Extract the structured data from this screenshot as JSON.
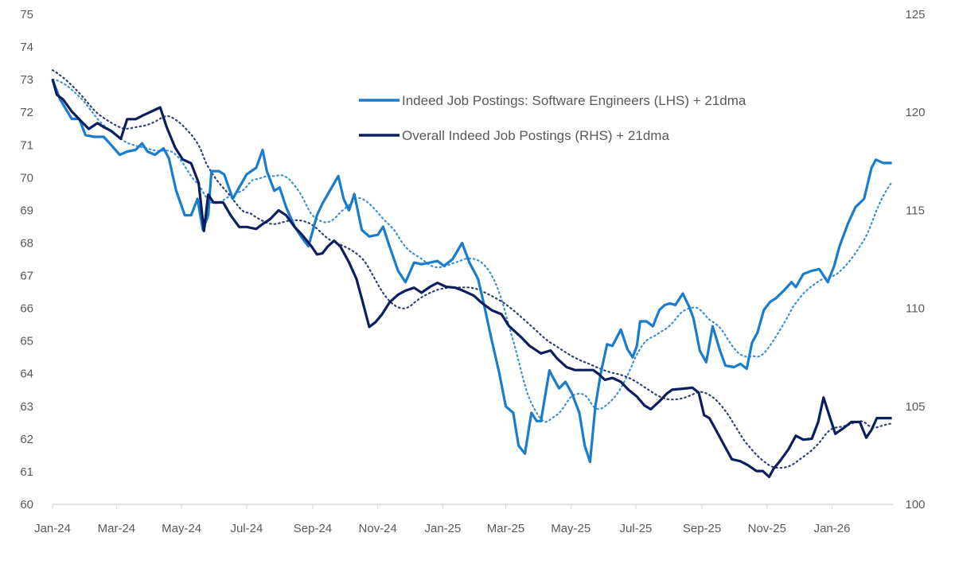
{
  "chart_data": {
    "type": "line",
    "title": "",
    "xlabel": "",
    "ylabel_left": "",
    "ylabel_right": "",
    "y_left": {
      "min": 60,
      "max": 75,
      "step": 1,
      "ticks": [
        "60",
        "61",
        "62",
        "63",
        "64",
        "65",
        "66",
        "67",
        "68",
        "69",
        "70",
        "71",
        "72",
        "73",
        "74",
        "75"
      ]
    },
    "y_right": {
      "min": 100,
      "max": 125,
      "step": 5,
      "ticks": [
        "100",
        "105",
        "110",
        "115",
        "120",
        "125"
      ]
    },
    "x_ticks": [
      {
        "date": "2024-01-01",
        "label": "Jan-24"
      },
      {
        "date": "2024-03-01",
        "label": "Mar-24"
      },
      {
        "date": "2024-05-01",
        "label": "May-24"
      },
      {
        "date": "2024-07-01",
        "label": "Jul-24"
      },
      {
        "date": "2024-09-01",
        "label": "Sep-24"
      },
      {
        "date": "2024-11-01",
        "label": "Nov-24"
      },
      {
        "date": "2025-01-01",
        "label": "Jan-25"
      },
      {
        "date": "2025-03-01",
        "label": "Mar-25"
      },
      {
        "date": "2025-05-01",
        "label": "May-25"
      },
      {
        "date": "2025-07-01",
        "label": "Jul-25"
      },
      {
        "date": "2025-09-01",
        "label": "Sep-25"
      },
      {
        "date": "2025-11-01",
        "label": "Nov-25"
      },
      {
        "date": "2026-01-01",
        "label": "Jan-26"
      }
    ],
    "grid": false,
    "legend_position": "top-right",
    "series": [
      {
        "name": "Indeed Job Postings: Software Engineers (LHS) + 21dma",
        "axis": "left",
        "color": "#1a7ccc",
        "moving_average": "21dma, dotted",
        "x": [
          "2024-01-01",
          "2024-01-08",
          "2024-01-19",
          "2024-01-26",
          "2024-02-01",
          "2024-02-09",
          "2024-02-18",
          "2024-02-25",
          "2024-03-04",
          "2024-03-11",
          "2024-03-19",
          "2024-03-25",
          "2024-03-30",
          "2024-04-06",
          "2024-04-14",
          "2024-04-19",
          "2024-04-26",
          "2024-05-04",
          "2024-05-10",
          "2024-05-16",
          "2024-05-21",
          "2024-05-26",
          "2024-05-29",
          "2024-06-05",
          "2024-06-10",
          "2024-06-18",
          "2024-06-24",
          "2024-07-01",
          "2024-07-10",
          "2024-07-16",
          "2024-07-20",
          "2024-07-27",
          "2024-08-01",
          "2024-08-07",
          "2024-08-15",
          "2024-08-22",
          "2024-08-28",
          "2024-09-05",
          "2024-09-10",
          "2024-09-17",
          "2024-09-25",
          "2024-09-30",
          "2024-10-05",
          "2024-10-10",
          "2024-10-17",
          "2024-10-24",
          "2024-11-01",
          "2024-11-06",
          "2024-11-12",
          "2024-11-20",
          "2024-11-27",
          "2024-12-05",
          "2024-12-12",
          "2024-12-20",
          "2024-12-27",
          "2025-01-02",
          "2025-01-10",
          "2025-01-19",
          "2025-01-26",
          "2025-02-03",
          "2025-02-08",
          "2025-02-16",
          "2025-02-23",
          "2025-03-01",
          "2025-03-08",
          "2025-03-13",
          "2025-03-19",
          "2025-03-25",
          "2025-03-30",
          "2025-04-03",
          "2025-04-11",
          "2025-04-14",
          "2025-04-20",
          "2025-04-26",
          "2025-05-02",
          "2025-05-09",
          "2025-05-14",
          "2025-05-19",
          "2025-05-24",
          "2025-05-29",
          "2025-06-04",
          "2025-06-09",
          "2025-06-17",
          "2025-06-23",
          "2025-06-28",
          "2025-07-02",
          "2025-07-05",
          "2025-07-11",
          "2025-07-17",
          "2025-07-23",
          "2025-07-28",
          "2025-08-02",
          "2025-08-07",
          "2025-08-14",
          "2025-08-20",
          "2025-08-24",
          "2025-08-30",
          "2025-09-05",
          "2025-09-11",
          "2025-09-18",
          "2025-09-23",
          "2025-10-01",
          "2025-10-07",
          "2025-10-13",
          "2025-10-18",
          "2025-10-23",
          "2025-10-29",
          "2025-11-04",
          "2025-11-09",
          "2025-11-17",
          "2025-11-24",
          "2025-11-28",
          "2025-12-05",
          "2025-12-13",
          "2025-12-20",
          "2025-12-28",
          "2026-01-03",
          "2026-01-08",
          "2026-01-16",
          "2026-01-23",
          "2026-01-31",
          "2026-02-07",
          "2026-02-11",
          "2026-02-18",
          "2026-02-26"
        ],
        "values": [
          73.0,
          72.4,
          71.8,
          71.8,
          71.3,
          71.25,
          71.25,
          71.0,
          70.7,
          70.8,
          70.85,
          71.05,
          70.8,
          70.7,
          70.9,
          70.6,
          69.6,
          68.85,
          68.85,
          69.35,
          68.4,
          68.85,
          70.2,
          70.2,
          70.1,
          69.35,
          69.7,
          70.1,
          70.3,
          70.85,
          70.2,
          69.6,
          69.7,
          69.1,
          68.5,
          68.15,
          67.9,
          68.85,
          69.2,
          69.6,
          70.05,
          69.35,
          69.0,
          69.5,
          68.4,
          68.2,
          68.25,
          68.5,
          67.9,
          67.15,
          66.8,
          67.4,
          67.35,
          67.4,
          67.45,
          67.3,
          67.5,
          68.0,
          67.4,
          66.9,
          66.2,
          65.0,
          64.0,
          63.0,
          62.8,
          61.8,
          61.55,
          62.8,
          62.55,
          62.55,
          64.1,
          63.9,
          63.55,
          63.75,
          63.4,
          62.8,
          61.8,
          61.3,
          63.0,
          64.0,
          64.9,
          64.85,
          65.35,
          64.75,
          64.5,
          64.85,
          65.6,
          65.6,
          65.45,
          65.95,
          66.1,
          66.15,
          66.1,
          66.45,
          66.05,
          65.7,
          64.7,
          64.35,
          65.45,
          64.7,
          64.25,
          64.2,
          64.3,
          64.15,
          64.95,
          65.25,
          65.95,
          66.2,
          66.3,
          66.55,
          66.8,
          66.65,
          67.05,
          67.15,
          67.2,
          66.8,
          67.3,
          67.9,
          68.6,
          69.1,
          69.35,
          70.3,
          70.55,
          70.45,
          70.45
        ]
      },
      {
        "name": "Overall Indeed Job Postings (RHS) + 21dma",
        "axis": "right",
        "color": "#0b1f5e",
        "moving_average": "21dma, dotted",
        "x": [
          "2024-01-01",
          "2024-01-05",
          "2024-01-11",
          "2024-01-19",
          "2024-01-26",
          "2024-02-04",
          "2024-02-12",
          "2024-02-18",
          "2024-02-25",
          "2024-03-05",
          "2024-03-11",
          "2024-03-19",
          "2024-03-26",
          "2024-04-03",
          "2024-04-11",
          "2024-04-17",
          "2024-04-25",
          "2024-05-02",
          "2024-05-10",
          "2024-05-17",
          "2024-05-22",
          "2024-05-26",
          "2024-05-31",
          "2024-06-09",
          "2024-06-16",
          "2024-06-24",
          "2024-07-01",
          "2024-07-10",
          "2024-07-16",
          "2024-07-23",
          "2024-07-31",
          "2024-08-07",
          "2024-08-15",
          "2024-08-22",
          "2024-08-31",
          "2024-09-05",
          "2024-09-10",
          "2024-09-15",
          "2024-09-21",
          "2024-09-27",
          "2024-10-05",
          "2024-10-12",
          "2024-10-18",
          "2024-10-24",
          "2024-10-30",
          "2024-11-05",
          "2024-11-12",
          "2024-11-20",
          "2024-11-27",
          "2024-12-05",
          "2024-12-12",
          "2024-12-20",
          "2024-12-27",
          "2025-01-04",
          "2025-01-13",
          "2025-01-20",
          "2025-01-30",
          "2025-02-06",
          "2025-02-16",
          "2025-02-25",
          "2025-03-04",
          "2025-03-16",
          "2025-03-23",
          "2025-04-03",
          "2025-04-12",
          "2025-04-18",
          "2025-04-27",
          "2025-05-05",
          "2025-05-14",
          "2025-05-22",
          "2025-05-27",
          "2025-06-02",
          "2025-06-09",
          "2025-06-17",
          "2025-06-24",
          "2025-07-02",
          "2025-07-09",
          "2025-07-15",
          "2025-07-23",
          "2025-07-30",
          "2025-08-04",
          "2025-08-14",
          "2025-08-23",
          "2025-08-29",
          "2025-09-03",
          "2025-09-08",
          "2025-09-14",
          "2025-09-22",
          "2025-09-29",
          "2025-10-07",
          "2025-10-14",
          "2025-10-22",
          "2025-10-28",
          "2025-11-03",
          "2025-11-07",
          "2025-11-13",
          "2025-11-21",
          "2025-11-28",
          "2025-12-05",
          "2025-12-13",
          "2025-12-19",
          "2025-12-24",
          "2025-12-29",
          "2026-01-04",
          "2026-01-12",
          "2026-01-19",
          "2026-01-27",
          "2026-02-02",
          "2026-02-07",
          "2026-02-12",
          "2026-02-18",
          "2026-02-26"
        ],
        "values": [
          121.7,
          120.9,
          120.65,
          120.05,
          119.65,
          119.15,
          119.45,
          119.25,
          119.05,
          118.65,
          119.65,
          119.65,
          119.85,
          120.05,
          120.25,
          119.25,
          118.2,
          117.6,
          117.4,
          116.4,
          113.95,
          115.8,
          115.4,
          115.4,
          114.75,
          114.15,
          114.15,
          114.05,
          114.3,
          114.55,
          115.0,
          114.75,
          114.15,
          113.75,
          113.15,
          112.75,
          112.8,
          113.15,
          113.45,
          113.15,
          112.35,
          111.5,
          110.3,
          109.05,
          109.3,
          109.7,
          110.3,
          110.7,
          110.9,
          111.05,
          110.8,
          111.1,
          111.3,
          111.1,
          111.05,
          110.9,
          110.65,
          110.3,
          109.9,
          109.7,
          109.1,
          108.5,
          108.1,
          107.7,
          107.85,
          107.45,
          107.0,
          106.85,
          106.85,
          106.85,
          106.65,
          106.35,
          106.45,
          106.25,
          105.85,
          105.5,
          105.05,
          104.85,
          105.25,
          105.65,
          105.85,
          105.9,
          105.95,
          105.7,
          104.55,
          104.4,
          103.8,
          103.0,
          102.3,
          102.2,
          102.0,
          101.7,
          101.7,
          101.4,
          101.8,
          102.2,
          102.8,
          103.5,
          103.3,
          103.35,
          104.2,
          105.45,
          104.6,
          103.6,
          103.9,
          104.2,
          104.2,
          103.4,
          103.8,
          104.4,
          104.4,
          104.4
        ]
      }
    ]
  },
  "legend": {
    "items": [
      {
        "label": "Indeed Job Postings: Software Engineers (LHS) + 21dma",
        "color": "#1a7ccc"
      },
      {
        "label": "Overall Indeed Job Postings (RHS) + 21dma",
        "color": "#0b1f5e"
      }
    ]
  }
}
